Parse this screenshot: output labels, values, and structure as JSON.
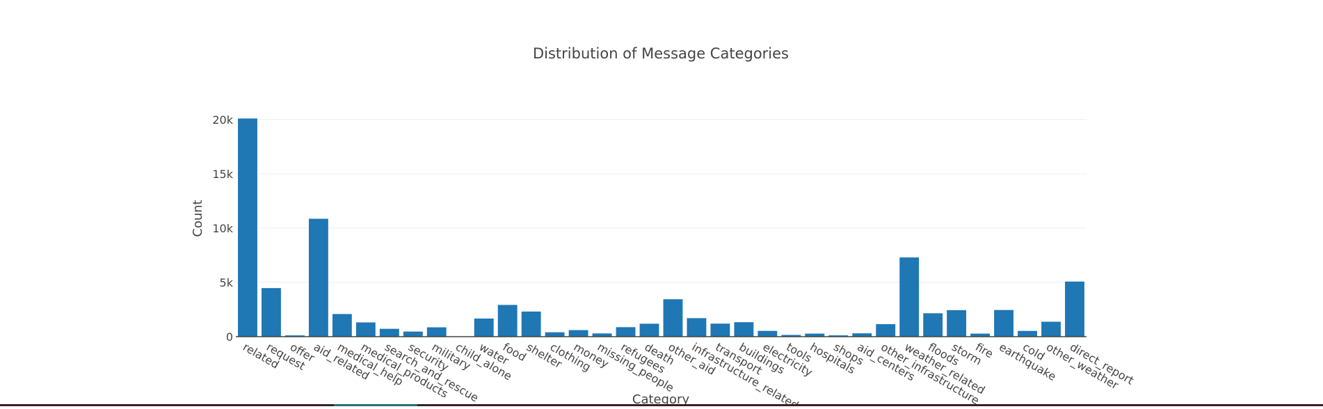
{
  "chart_data": {
    "type": "bar",
    "title": "Distribution of Message Categories",
    "xlabel": "Category",
    "ylabel": "Count",
    "ylim": [
      0,
      20500
    ],
    "yticks": [
      0,
      5000,
      10000,
      15000,
      20000
    ],
    "ytick_labels": [
      "0",
      "5k",
      "10k",
      "15k",
      "20k"
    ],
    "grid": true,
    "bar_color": "#1f77b4",
    "categories": [
      "related",
      "request",
      "offer",
      "aid_related",
      "medical_help",
      "medical_products",
      "search_and_rescue",
      "security",
      "military",
      "child_alone",
      "water",
      "food",
      "shelter",
      "clothing",
      "money",
      "missing_people",
      "refugees",
      "death",
      "other_aid",
      "infrastructure_related",
      "transport",
      "buildings",
      "electricity",
      "tools",
      "hospitals",
      "shops",
      "aid_centers",
      "other_infrastructure",
      "weather_related",
      "floods",
      "storm",
      "fire",
      "earthquake",
      "cold",
      "other_weather",
      "direct_report"
    ],
    "values": [
      20094,
      4474,
      118,
      10860,
      2084,
      1313,
      724,
      471,
      860,
      0,
      1672,
      2923,
      2314,
      405,
      604,
      298,
      875,
      1194,
      3446,
      1705,
      1201,
      1333,
      532,
      159,
      283,
      120,
      309,
      1151,
      7297,
      2155,
      2443,
      282,
      2455,
      530,
      1376,
      5075
    ]
  }
}
